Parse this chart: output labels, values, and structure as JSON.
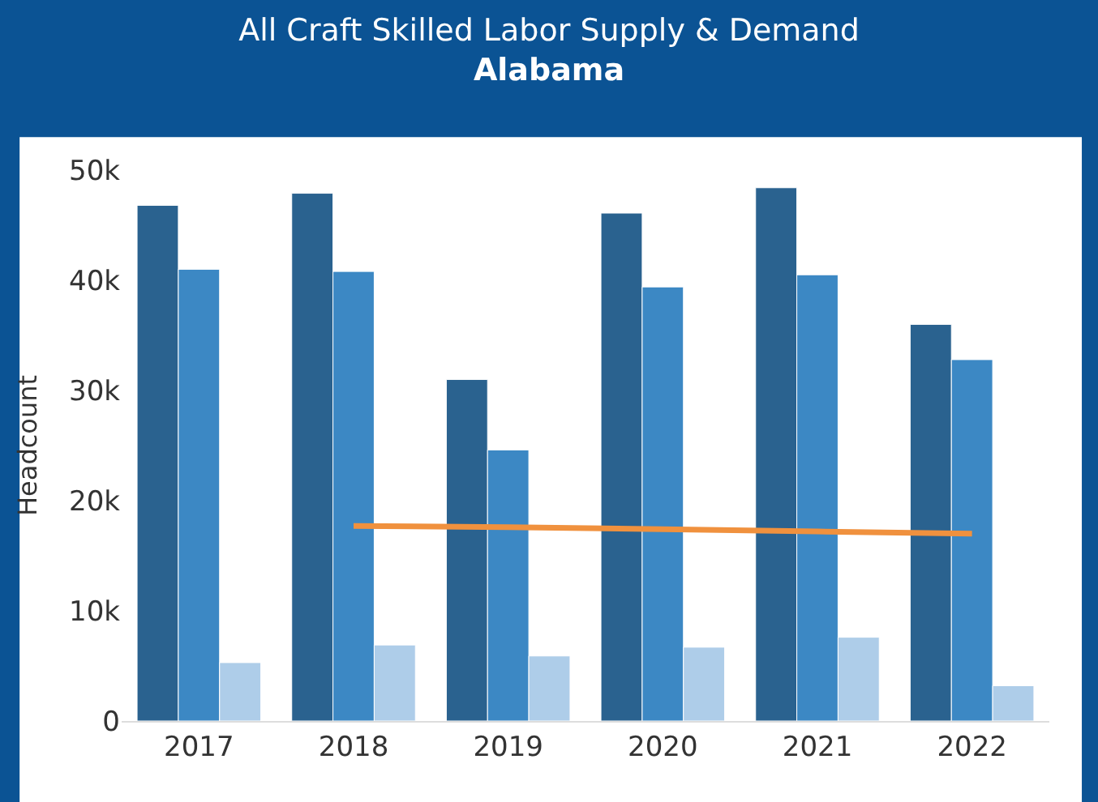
{
  "chart_data": {
    "type": "bar",
    "title": "All Craft Skilled Labor Supply & Demand",
    "subtitle": "Alabama",
    "ylabel": "Headcount",
    "categories": [
      "2017",
      "2018",
      "2019",
      "2020",
      "2021",
      "2022"
    ],
    "series": [
      {
        "color": "#2a628f",
        "values": [
          46800,
          47900,
          31000,
          46100,
          48400,
          36000
        ]
      },
      {
        "color": "#3c88c4",
        "values": [
          41000,
          40800,
          24600,
          39400,
          40500,
          32800
        ]
      },
      {
        "color": "#aecde9",
        "values": [
          5300,
          6900,
          5900,
          6700,
          7600,
          3200
        ]
      },
      {
        "type": "line",
        "color": "#f0913e",
        "values": [
          null,
          17700,
          17600,
          17400,
          17200,
          17000
        ]
      }
    ],
    "ylim": [
      0,
      50000
    ],
    "yticks": [
      0,
      {
        "value": 10000,
        "label": "10k"
      },
      {
        "value": 20000,
        "label": "20k"
      },
      {
        "value": 30000,
        "label": "30k"
      },
      {
        "value": 40000,
        "label": "40k"
      },
      {
        "value": 50000,
        "label": "50k"
      }
    ],
    "marker": "none"
  }
}
